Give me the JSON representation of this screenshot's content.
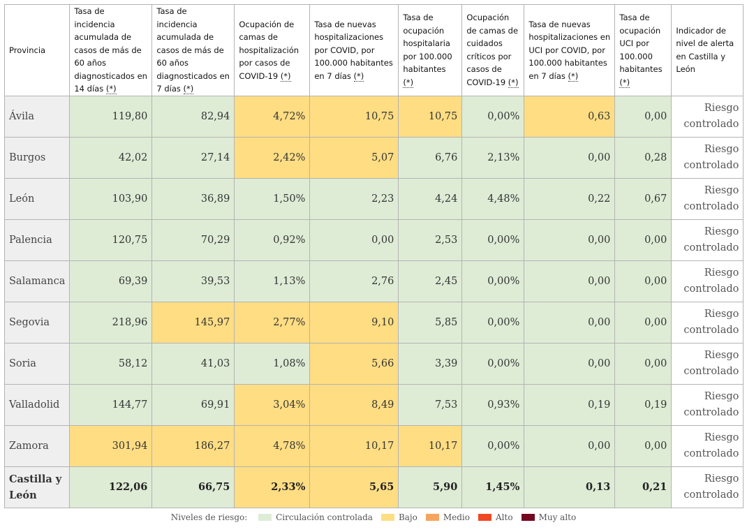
{
  "table": {
    "headers": [
      {
        "text": "Provincia",
        "asterisk": false
      },
      {
        "text": "Tasa de incidencia acumulada de casos de más de 60 años diagnosticados en 14 días ",
        "asterisk": true
      },
      {
        "text": "Tasa de incidencia acumulada de casos de más de 60 años diagnosticados en 7 días ",
        "asterisk": true
      },
      {
        "text": "Ocupación de camas de hospitalización por casos de COVID-19 ",
        "asterisk": true
      },
      {
        "text": "Tasa de nuevas hospitalizaciones por COVID, por 100.000 habitantes en 7 días ",
        "asterisk": true
      },
      {
        "text": "Tasa de ocupación hospitalaria por 100.000 habitantes ",
        "asterisk": true
      },
      {
        "text": "Ocupación de camas de cuidados críticos por casos de COVID-19 ",
        "asterisk": true
      },
      {
        "text": "Tasa de nuevas hospitalizaciones en UCI por COVID, por 100.000 habitantes en 7 días ",
        "asterisk": true
      },
      {
        "text": "Tasa de ocupación UCI por 100.000 habitantes ",
        "asterisk": true
      },
      {
        "text": "Indicador de nivel de alerta en Castilla y León",
        "asterisk": false
      }
    ],
    "asterisk_label": "(*)",
    "rows": [
      {
        "province": "Ávila",
        "values": [
          "119,80",
          "82,94",
          "4,72%",
          "10,75",
          "10,75",
          "0,00%",
          "0,63",
          "0,00"
        ],
        "levels": [
          "g",
          "g",
          "y",
          "y",
          "y",
          "g",
          "y",
          "g"
        ],
        "alert": "Riesgo controlado"
      },
      {
        "province": "Burgos",
        "values": [
          "42,02",
          "27,14",
          "2,42%",
          "5,07",
          "6,76",
          "2,13%",
          "0,00",
          "0,28"
        ],
        "levels": [
          "g",
          "g",
          "y",
          "y",
          "g",
          "g",
          "g",
          "g"
        ],
        "alert": "Riesgo controlado"
      },
      {
        "province": "León",
        "values": [
          "103,90",
          "36,89",
          "1,50%",
          "2,23",
          "4,24",
          "4,48%",
          "0,22",
          "0,67"
        ],
        "levels": [
          "g",
          "g",
          "g",
          "g",
          "g",
          "g",
          "g",
          "g"
        ],
        "alert": "Riesgo controlado"
      },
      {
        "province": "Palencia",
        "values": [
          "120,75",
          "70,29",
          "0,92%",
          "0,00",
          "2,53",
          "0,00%",
          "0,00",
          "0,00"
        ],
        "levels": [
          "g",
          "g",
          "g",
          "g",
          "g",
          "g",
          "g",
          "g"
        ],
        "alert": "Riesgo controlado"
      },
      {
        "province": "Salamanca",
        "values": [
          "69,39",
          "39,53",
          "1,13%",
          "2,76",
          "2,45",
          "0,00%",
          "0,00",
          "0,00"
        ],
        "levels": [
          "g",
          "g",
          "g",
          "g",
          "g",
          "g",
          "g",
          "g"
        ],
        "alert": "Riesgo controlado"
      },
      {
        "province": "Segovia",
        "values": [
          "218,96",
          "145,97",
          "2,77%",
          "9,10",
          "5,85",
          "0,00%",
          "0,00",
          "0,00"
        ],
        "levels": [
          "g",
          "y",
          "y",
          "y",
          "g",
          "g",
          "g",
          "g"
        ],
        "alert": "Riesgo controlado"
      },
      {
        "province": "Soria",
        "values": [
          "58,12",
          "41,03",
          "1,08%",
          "5,66",
          "3,39",
          "0,00%",
          "0,00",
          "0,00"
        ],
        "levels": [
          "g",
          "g",
          "g",
          "y",
          "g",
          "g",
          "g",
          "g"
        ],
        "alert": "Riesgo controlado"
      },
      {
        "province": "Valladolid",
        "values": [
          "144,77",
          "69,91",
          "3,04%",
          "8,49",
          "7,53",
          "0,93%",
          "0,19",
          "0,19"
        ],
        "levels": [
          "g",
          "g",
          "y",
          "y",
          "g",
          "g",
          "g",
          "g"
        ],
        "alert": "Riesgo controlado"
      },
      {
        "province": "Zamora",
        "values": [
          "301,94",
          "186,27",
          "4,78%",
          "10,17",
          "10,17",
          "0,00%",
          "0,00",
          "0,00"
        ],
        "levels": [
          "y",
          "y",
          "y",
          "y",
          "y",
          "g",
          "g",
          "g"
        ],
        "alert": "Riesgo controlado"
      }
    ],
    "total": {
      "province": "Castilla y León",
      "values": [
        "122,06",
        "66,75",
        "2,33%",
        "5,65",
        "5,90",
        "1,45%",
        "0,13",
        "0,21"
      ],
      "levels": [
        "g",
        "g",
        "y",
        "y",
        "g",
        "g",
        "g",
        "g"
      ],
      "alert": "Riesgo controlado"
    }
  },
  "legend": {
    "title": "Niveles de riesgo:",
    "items": [
      {
        "label": "Circulación controlada",
        "color": "#deecd6"
      },
      {
        "label": "Bajo",
        "color": "#fedd83"
      },
      {
        "label": "Medio",
        "color": "#f5a55c"
      },
      {
        "label": "Alto",
        "color": "#f04822"
      },
      {
        "label": "Muy alto",
        "color": "#75071f"
      }
    ]
  }
}
